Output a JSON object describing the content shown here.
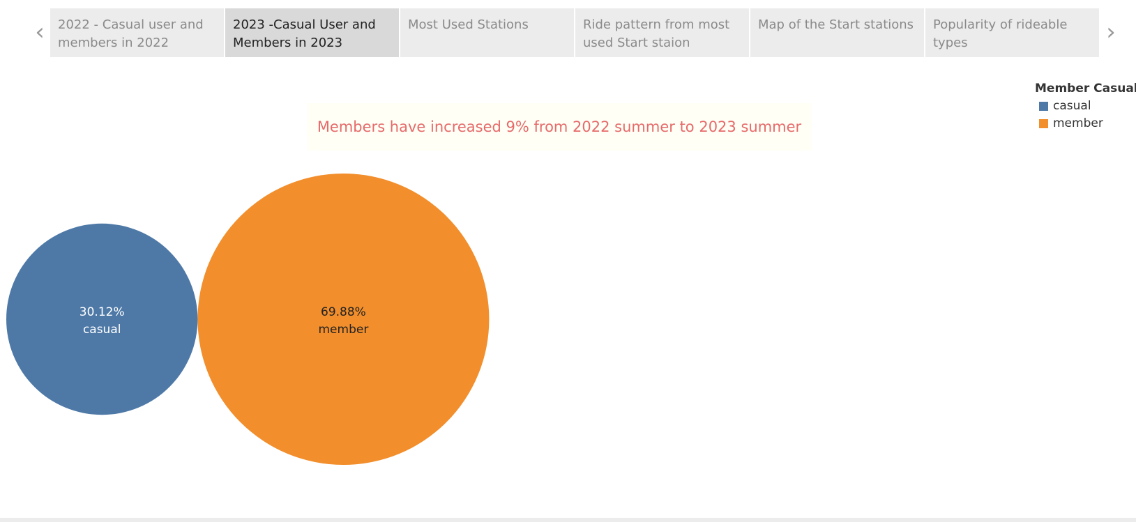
{
  "story_nav": {
    "prev_icon": "chevron-left-icon",
    "next_icon": "chevron-right-icon",
    "tabs": [
      {
        "label": "2022 - Casual user and members in 2022",
        "active": false
      },
      {
        "label": "2023 -Casual User and Members in 2023",
        "active": true
      },
      {
        "label": "Most Used Stations",
        "active": false
      },
      {
        "label": "Ride pattern from most used Start staion",
        "active": false
      },
      {
        "label": "Map of the Start stations",
        "active": false
      },
      {
        "label": "Popularity of rideable types",
        "active": false
      }
    ]
  },
  "caption": {
    "text": "Members have increased 9% from 2022 summer to 2023 summer"
  },
  "legend": {
    "title": "Member Casual",
    "items": [
      {
        "label": "casual",
        "color": "#4e79a7"
      },
      {
        "label": "member",
        "color": "#f28e2b"
      }
    ]
  },
  "chart_data": {
    "type": "bubble",
    "series": [
      {
        "name": "casual",
        "value": 30.12,
        "value_label": "30.12%",
        "color": "#4e79a7",
        "text_color": "#ffffff"
      },
      {
        "name": "member",
        "value": 69.88,
        "value_label": "69.88%",
        "color": "#f28e2b",
        "text_color": "#222222"
      }
    ]
  }
}
